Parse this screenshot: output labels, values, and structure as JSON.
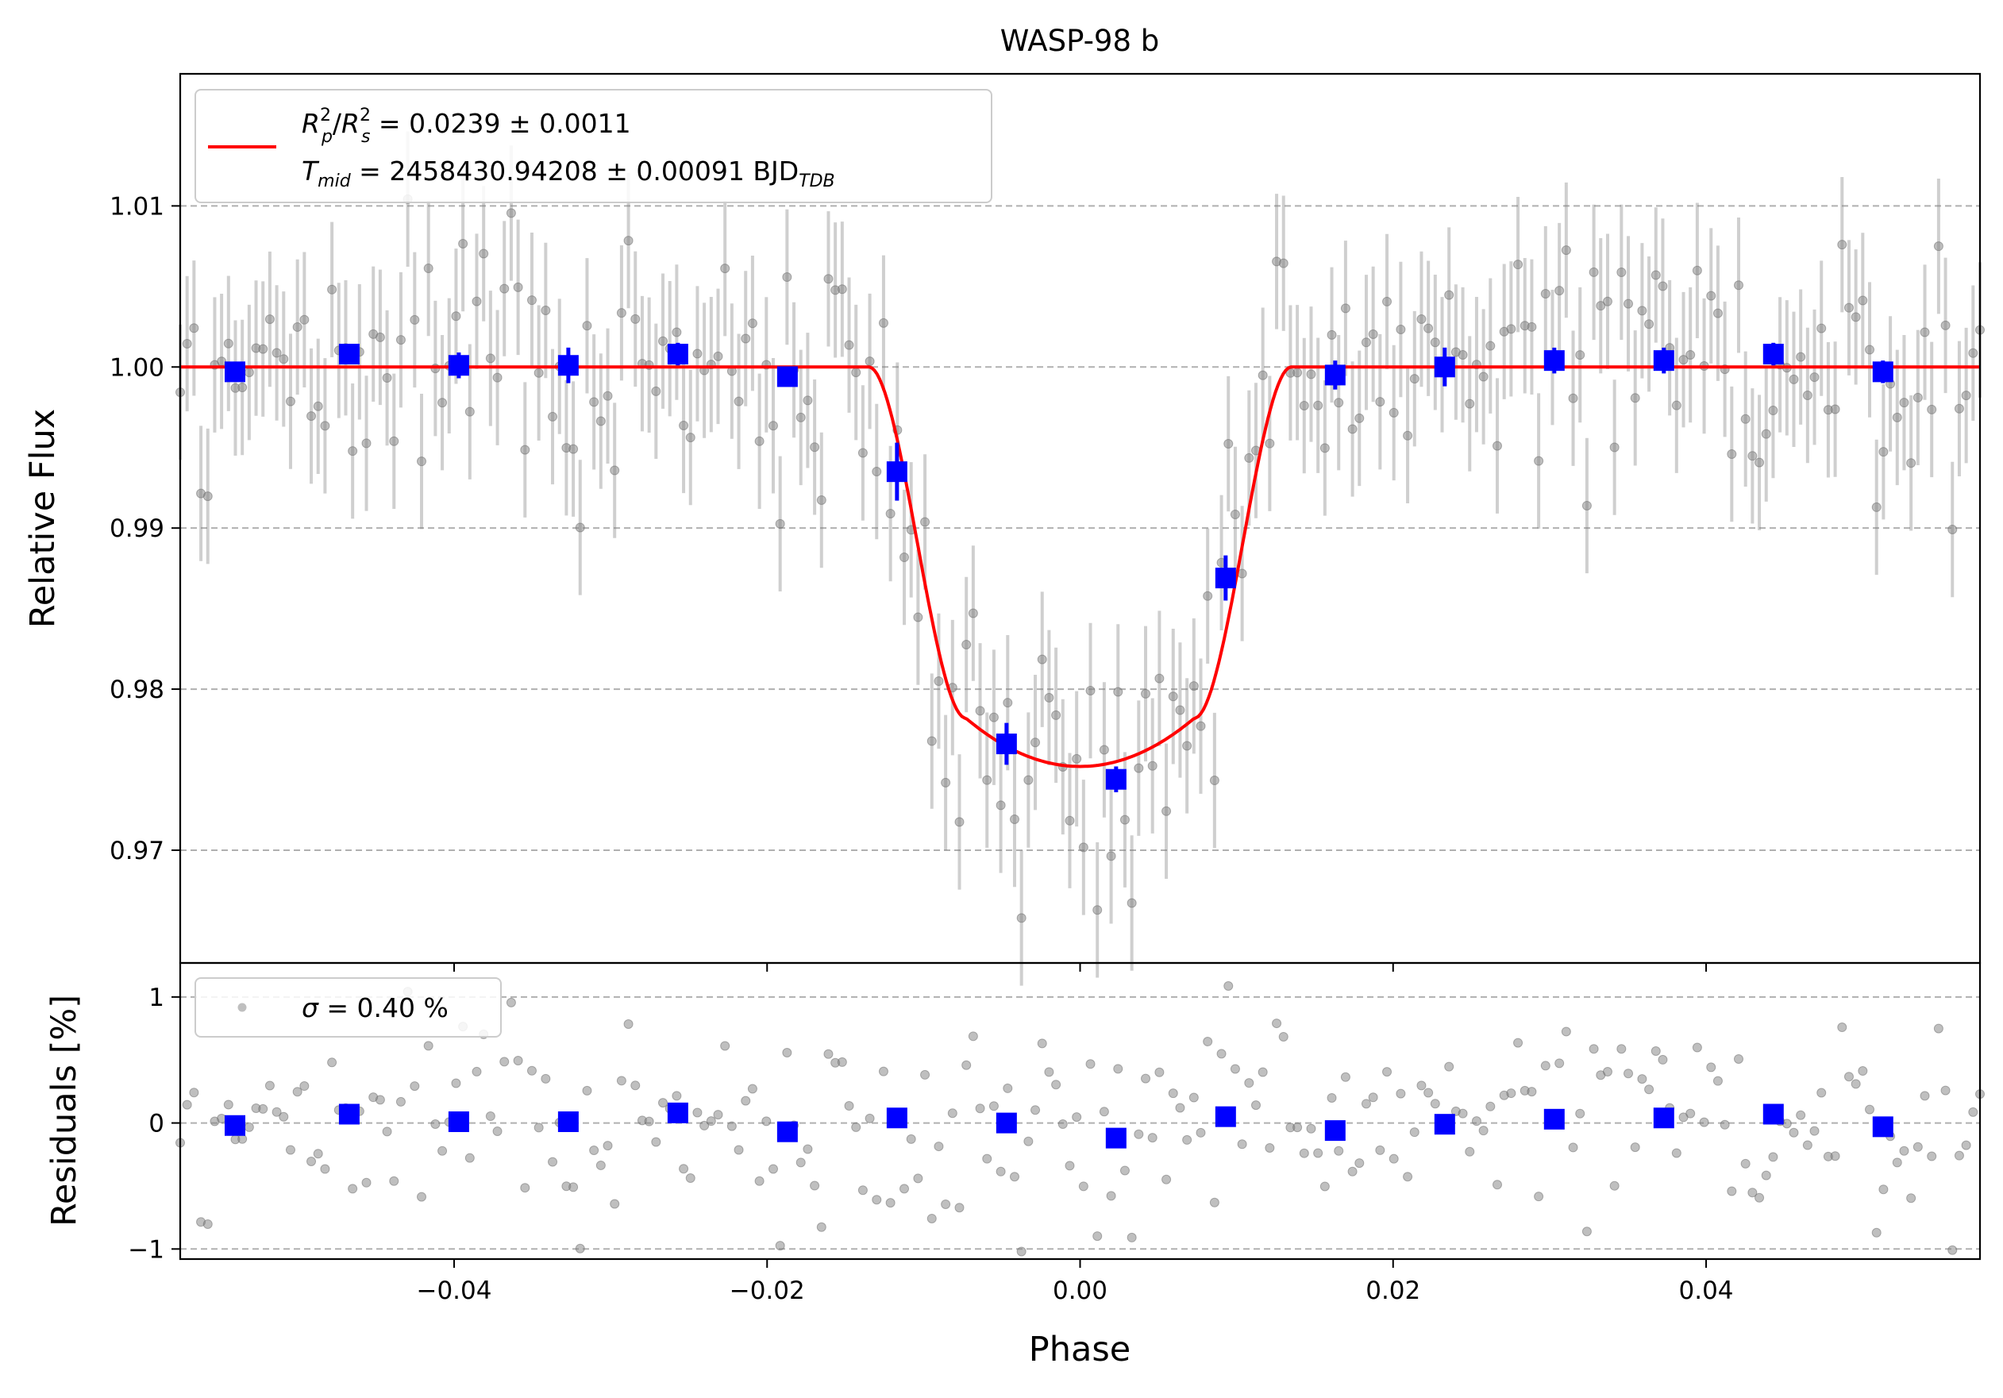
{
  "chart_data": [
    {
      "panel": "top",
      "type": "scatter",
      "title": "WASP-98 b",
      "xlabel": "",
      "ylabel": "Relative Flux",
      "xlim": [
        -0.0575,
        0.0575
      ],
      "ylim": [
        0.963,
        1.0182
      ],
      "yticks": [
        0.97,
        0.98,
        0.99,
        1.0,
        1.01
      ],
      "ytick_labels": [
        "0.97",
        "0.98",
        "0.99",
        "1.00",
        "1.01"
      ],
      "grid": "horizontal dashed",
      "legend": {
        "position": "upper left",
        "line1": {
          "prefix": "",
          "a": "R",
          "a_sup": "2",
          "a_sub": "p",
          "slash": "/",
          "b": "R",
          "b_sup": "2",
          "b_sub": "s",
          "rest": " = 0.0239 ± 0.0011"
        },
        "line2": {
          "var": "T",
          "var_sub": "mid",
          "rest": " = 2458430.94208 ± 0.00091 BJD",
          "unit_sub": "TDB"
        }
      },
      "model": {
        "name": "transit model",
        "color": "#ff0000",
        "baseline": 1.0,
        "t14_half": 0.0135,
        "t23_half": 0.0073,
        "depth_at_contact2": 0.0218,
        "depth_center": 0.0248
      },
      "binned_series": {
        "name": "binned",
        "color": "#0000ff",
        "x": [
          -0.054,
          -0.0467,
          -0.0397,
          -0.0327,
          -0.0257,
          -0.0187,
          -0.0117,
          -0.0047,
          0.0023,
          0.0093,
          0.0163,
          0.0233,
          0.0303,
          0.0373,
          0.0443,
          0.0513
        ],
        "y": [
          0.9997,
          1.0008,
          1.0001,
          1.0001,
          1.0008,
          0.9994,
          0.9935,
          0.9766,
          0.9744,
          0.9869,
          0.9995,
          1.0,
          1.0004,
          1.0004,
          1.0008,
          0.9997
        ],
        "err": [
          0.0006,
          0.0005,
          0.0008,
          0.0011,
          0.0007,
          0.0006,
          0.0018,
          0.0013,
          0.0008,
          0.0014,
          0.0009,
          0.0012,
          0.0008,
          0.0008,
          0.0007,
          0.0007
        ]
      },
      "raw_series": {
        "name": "data",
        "color": "#808080",
        "x_start": -0.0575,
        "x_end": 0.0575,
        "n_points": 262,
        "error": 0.0042
      }
    },
    {
      "panel": "bottom",
      "type": "scatter",
      "xlabel": "Phase",
      "ylabel": "Residuals [%]",
      "xlim": [
        -0.0575,
        0.0575
      ],
      "ylim": [
        -1.08,
        1.27
      ],
      "xticks": [
        -0.04,
        -0.02,
        0.0,
        0.02,
        0.04
      ],
      "xtick_labels": [
        "−0.04",
        "−0.02",
        "0.00",
        "0.02",
        "0.04"
      ],
      "yticks": [
        -1,
        0,
        1
      ],
      "ytick_labels": [
        "−1",
        "0",
        "1"
      ],
      "grid": "horizontal dashed",
      "legend": {
        "position": "upper left",
        "sigma_symbol": "σ",
        "text": " = 0.40 %"
      },
      "binned_series": {
        "name": "binned residuals",
        "color": "#0000ff",
        "x": [
          -0.054,
          -0.0467,
          -0.0397,
          -0.0327,
          -0.0257,
          -0.0187,
          -0.0117,
          -0.0047,
          0.0023,
          0.0093,
          0.0163,
          0.0233,
          0.0303,
          0.0373,
          0.0443,
          0.0513
        ],
        "y": [
          -0.02,
          0.07,
          0.01,
          0.01,
          0.08,
          -0.07,
          0.04,
          0.0,
          -0.12,
          0.05,
          -0.06,
          -0.01,
          0.03,
          0.04,
          0.07,
          -0.03
        ]
      },
      "raw_series": {
        "name": "residuals",
        "color": "#808080",
        "sigma": 0.4
      }
    }
  ]
}
